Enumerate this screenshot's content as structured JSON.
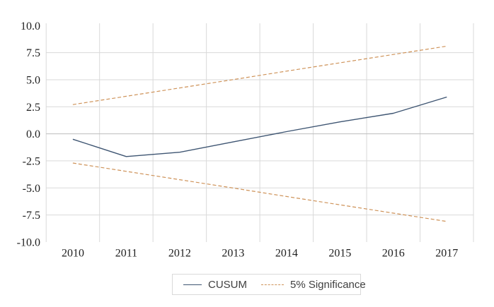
{
  "chart_data": {
    "type": "line",
    "title": "",
    "x_categories": [
      "2010",
      "2011",
      "2012",
      "2013",
      "2014",
      "2015",
      "2016",
      "2017"
    ],
    "y_tick_labels": [
      "10.0",
      "7.5",
      "5.0",
      "2.5",
      "0.0",
      "-2.5",
      "-5.0",
      "-7.5",
      "-10.0"
    ],
    "ylim": [
      -10.0,
      10.0
    ],
    "y_major_step": 2.5,
    "grid": true,
    "legend_position": "bottom-center",
    "series": [
      {
        "id": "cusum",
        "name": "CUSUM",
        "line_style": "solid",
        "color": "#3E5572",
        "values": [
          -0.5,
          -2.1,
          -1.7,
          -0.75,
          0.2,
          1.1,
          1.9,
          3.4
        ]
      },
      {
        "id": "significance-upper",
        "name": "5% Significance",
        "line_style": "dashed",
        "color": "#CE9258",
        "values": [
          2.7,
          3.47,
          4.24,
          5.01,
          5.79,
          6.56,
          7.33,
          8.1
        ]
      },
      {
        "id": "significance-lower",
        "name": "5% Significance",
        "line_style": "dashed",
        "color": "#CE9258",
        "values": [
          -2.7,
          -3.47,
          -4.24,
          -5.01,
          -5.79,
          -6.56,
          -7.33,
          -8.1
        ]
      }
    ],
    "legend": [
      {
        "label": "CUSUM",
        "line_style": "solid",
        "color": "#3E5572"
      },
      {
        "label": "5% Significance",
        "line_style": "dashed",
        "color": "#CE9258"
      }
    ]
  },
  "colors": {
    "background": "#FFFFFF",
    "gridline": "#D9D9D9",
    "zero_axis": "#BDBDBD",
    "axis_text": "#1F1F1F",
    "legend_text": "#404040",
    "legend_border": "#D9D9D9"
  }
}
